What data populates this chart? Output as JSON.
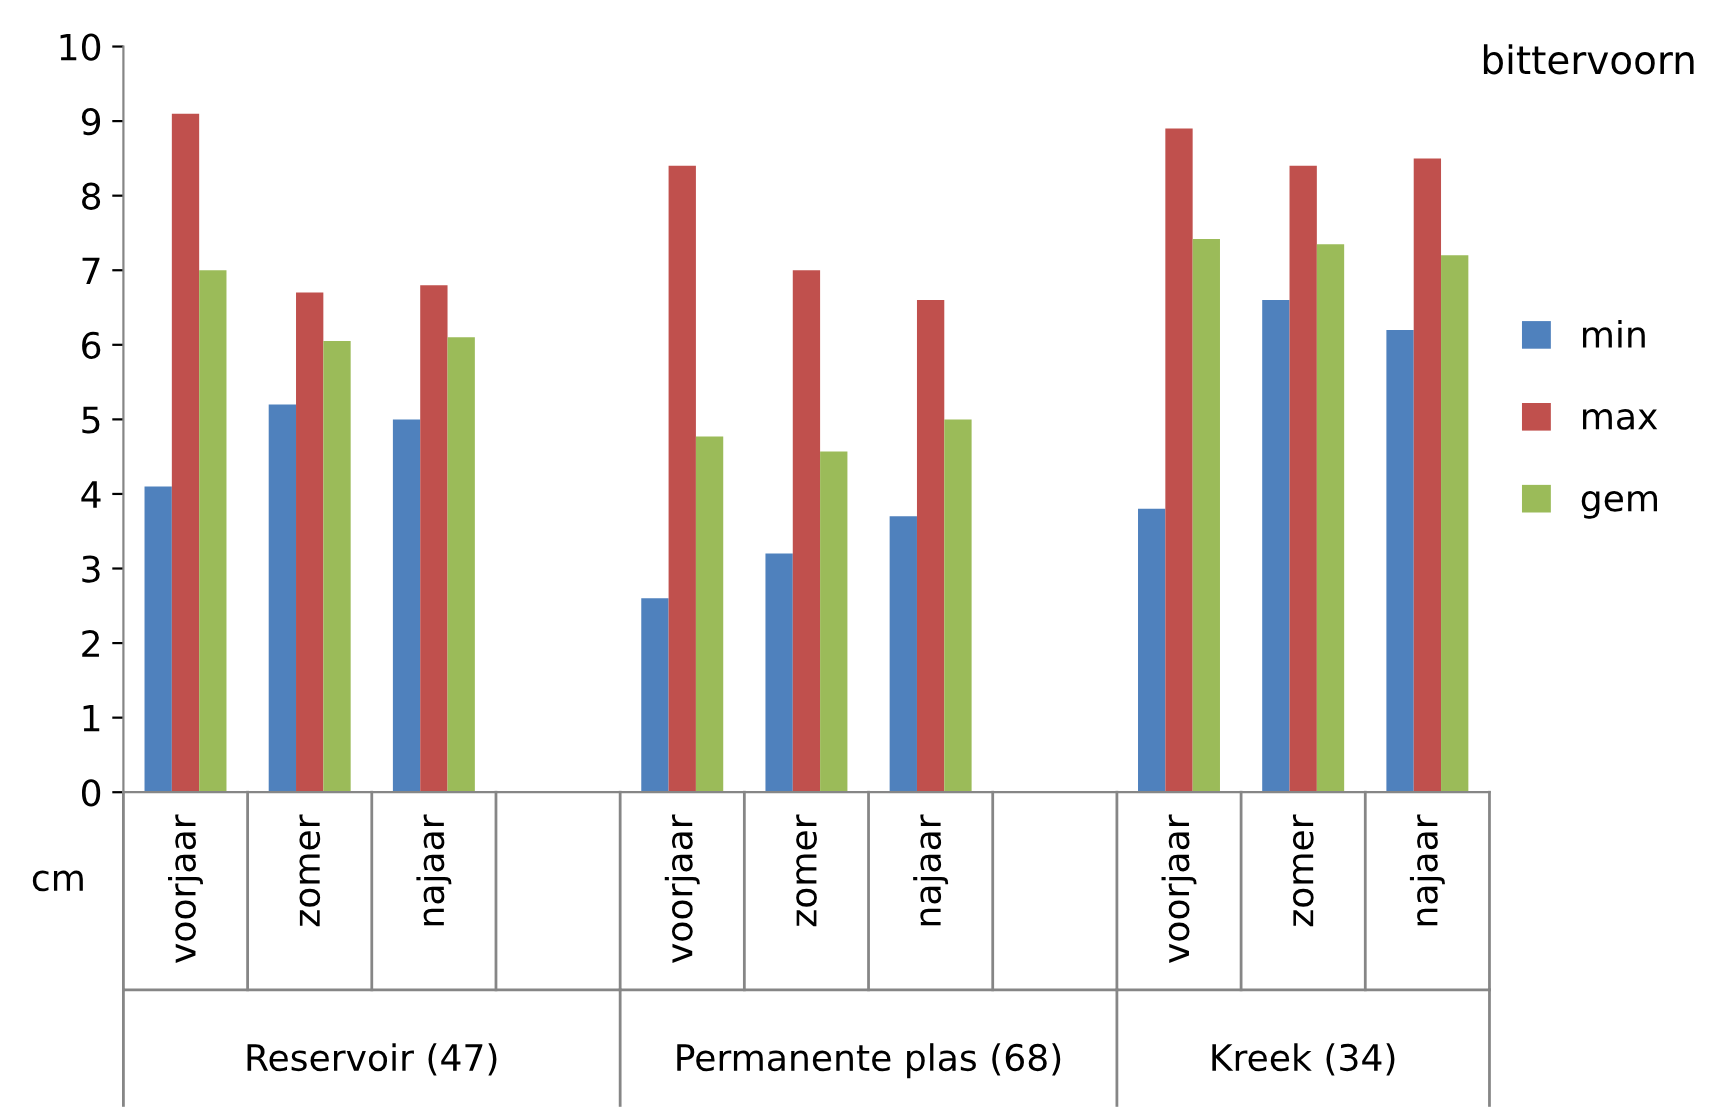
{
  "chart_data": {
    "type": "bar",
    "title": "bittervoorn",
    "ylabel": "cm",
    "categories": [
      "voorjaar",
      "zomer",
      "najaar",
      null,
      "voorjaar",
      "zomer",
      "najaar",
      null,
      "voorjaar",
      "zomer",
      "najaar"
    ],
    "series": [
      {
        "name": "min",
        "color": "#4f81bd",
        "values": [
          4.1,
          5.2,
          5.0,
          null,
          2.6,
          3.2,
          3.7,
          null,
          3.8,
          6.6,
          6.2
        ]
      },
      {
        "name": "max",
        "color": "#c0504d",
        "values": [
          9.1,
          6.7,
          6.8,
          null,
          8.4,
          7.0,
          6.6,
          null,
          8.9,
          8.4,
          8.5
        ]
      },
      {
        "name": "gem",
        "color": "#9bbb59",
        "values": [
          7.0,
          6.05,
          6.1,
          null,
          4.77,
          4.57,
          5.0,
          null,
          7.42,
          7.35,
          7.2
        ]
      }
    ],
    "annotations": [
      "Reservoir (47)",
      "Permanente plas (68)",
      "Kreek (34)"
    ],
    "ylim": [
      0,
      10
    ],
    "yticks": [
      0,
      1,
      2,
      3,
      4,
      5,
      6,
      7,
      8,
      9,
      10
    ],
    "grid": false,
    "legend": "right"
  }
}
